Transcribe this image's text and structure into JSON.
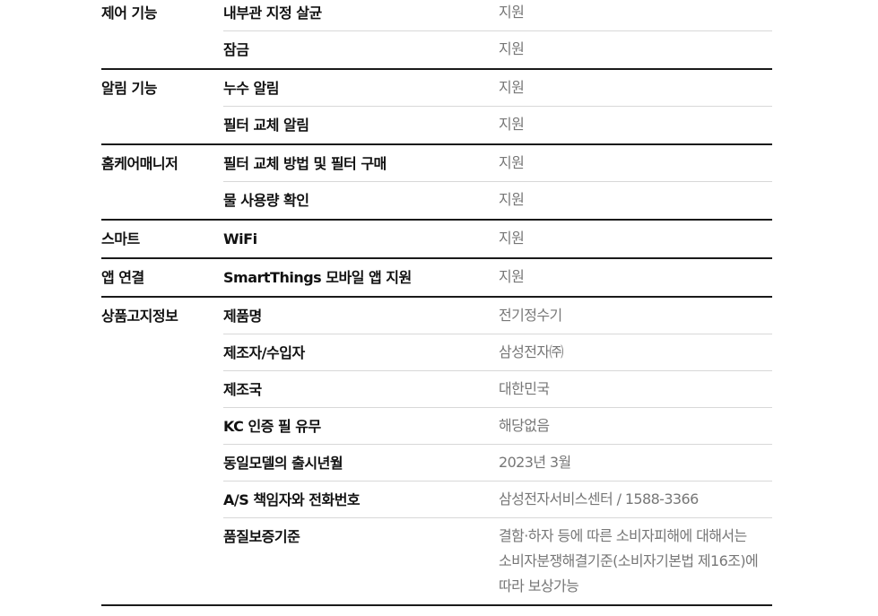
{
  "groups": [
    {
      "label": "제어 기능",
      "rows": [
        {
          "key": "내부관 지정 살균",
          "value": "지원"
        },
        {
          "key": "잠금",
          "value": "지원"
        }
      ]
    },
    {
      "label": "알림 기능",
      "rows": [
        {
          "key": "누수 알림",
          "value": "지원"
        },
        {
          "key": "필터 교체 알림",
          "value": "지원"
        }
      ]
    },
    {
      "label": "홈케어매니저",
      "rows": [
        {
          "key": "필터 교체 방법 및 필터 구매",
          "value": "지원"
        },
        {
          "key": "물 사용량 확인",
          "value": "지원"
        }
      ]
    },
    {
      "label": "스마트",
      "rows": [
        {
          "key": "WiFi",
          "value": "지원"
        }
      ]
    },
    {
      "label": "앱 연결",
      "rows": [
        {
          "key": "SmartThings 모바일 앱 지원",
          "value": "지원"
        }
      ]
    },
    {
      "label": "상품고지정보",
      "rows": [
        {
          "key": "제품명",
          "value": "전기정수기"
        },
        {
          "key": "제조자/수입자",
          "value": "삼성전자㈜"
        },
        {
          "key": "제조국",
          "value": "대한민국"
        },
        {
          "key": "KC 인증 필 유무",
          "value": "해당없음"
        },
        {
          "key": "동일모델의 출시년월",
          "value": "2023년 3월"
        },
        {
          "key": "A/S 책임자와 전화번호",
          "value": "삼성전자서비스센터 / 1588-3366"
        },
        {
          "key": "품질보증기준",
          "value": "결함·하자 등에 따른 소비자피해에 대해서는 소비자분쟁해결기준(소비자기본법 제16조)에 따라 보상가능"
        }
      ]
    }
  ]
}
